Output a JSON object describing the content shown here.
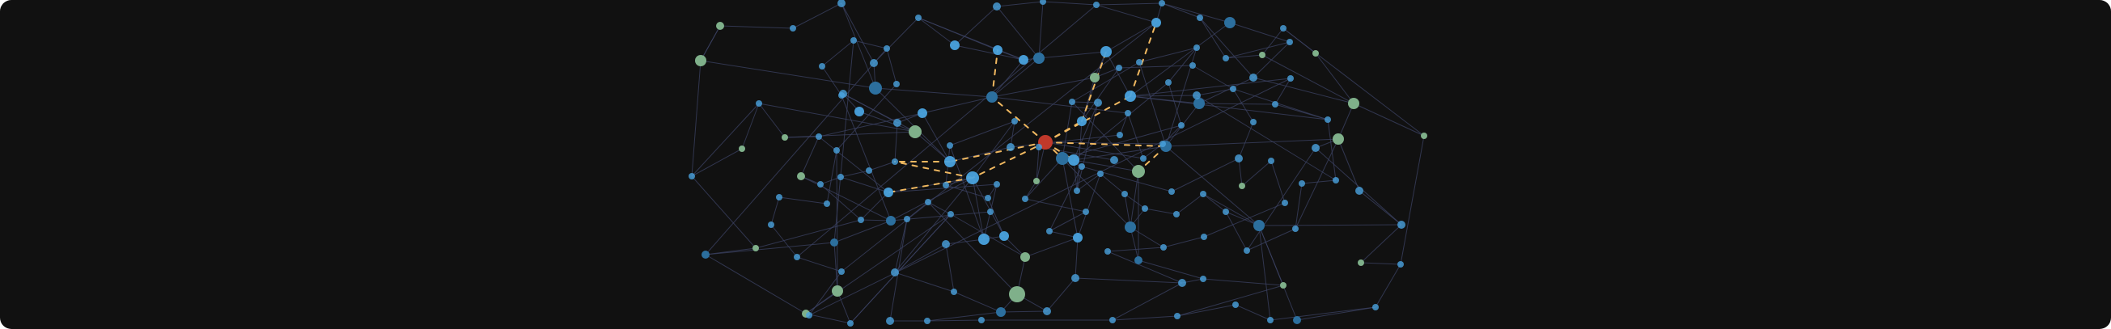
{
  "graph": {
    "background": "#111111",
    "colors": {
      "edge": "#3c4364",
      "highlight_edge": "#f0b860",
      "node_blue": "#4aa3df",
      "node_blue_dark": "#2c6f9e",
      "node_green": "#7fb08a",
      "node_focus": "#c0392b"
    }
  }
}
